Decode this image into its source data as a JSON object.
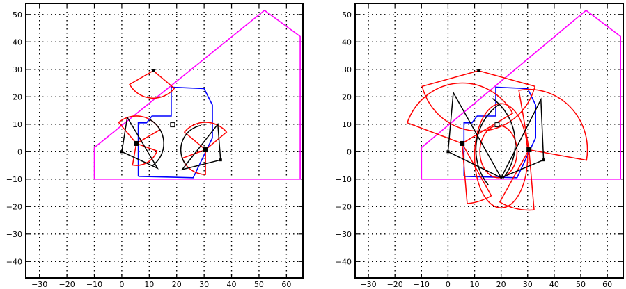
{
  "chart_data": [
    {
      "type": "scatter",
      "title": "",
      "xlabel": "",
      "ylabel": "",
      "xlim": [
        -35,
        66
      ],
      "ylim": [
        -46,
        54
      ],
      "xticks": [
        -30,
        -20,
        -10,
        0,
        10,
        20,
        30,
        40,
        50,
        60
      ],
      "yticks": [
        -40,
        -30,
        -20,
        -10,
        0,
        10,
        20,
        30,
        40,
        50
      ],
      "xtick_labels": [
        "−30",
        "−20",
        "−10",
        "0",
        "10",
        "20",
        "30",
        "40",
        "50",
        "60"
      ],
      "ytick_labels": [
        "−40",
        "−30",
        "−20",
        "−10",
        "0",
        "10",
        "20",
        "30",
        "40",
        "50"
      ],
      "grid": true,
      "colors": {
        "boundary": "#ff00ff",
        "region": "#0000ff",
        "sector": "#ff0000",
        "sensor": "#000000"
      },
      "boundary": [
        [
          -10,
          -10
        ],
        [
          65,
          -10
        ],
        [
          65,
          42
        ],
        [
          52,
          51.5
        ],
        [
          -10,
          1.5
        ],
        [
          -10,
          -10
        ]
      ],
      "region": [
        [
          6,
          -9
        ],
        [
          26,
          -9.5
        ],
        [
          33,
          5
        ],
        [
          33,
          17
        ],
        [
          30,
          23
        ],
        [
          18,
          23.5
        ],
        [
          18,
          13
        ],
        [
          11,
          13
        ],
        [
          9,
          10.5
        ],
        [
          6,
          10.5
        ],
        [
          6,
          -9
        ]
      ],
      "sensors": [
        [
          0,
          0
        ],
        [
          11.5,
          29.5
        ],
        [
          36,
          -3
        ],
        [
          5.3,
          3
        ],
        [
          30.5,
          0.7
        ]
      ],
      "sensor_filled": [
        true,
        true,
        true,
        true,
        true
      ],
      "target": [
        18.5,
        9.8
      ],
      "sector_groups": [
        {
          "sectors": [
            {
              "center": [
                5.3,
                3
              ],
              "radius": 10,
              "start_deg": 30,
              "end_deg": 130
            },
            {
              "center": [
                5.3,
                3
              ],
              "radius": 8,
              "start_deg": -100,
              "end_deg": -20
            },
            {
              "center": [
                11.5,
                29.5
              ],
              "radius": 10,
              "start_deg": 210,
              "end_deg": 320
            },
            {
              "center": [
                30.5,
                0.7
              ],
              "radius": 10,
              "start_deg": 40,
              "end_deg": 140
            },
            {
              "center": [
                30.5,
                0.7
              ],
              "radius": 9,
              "start_deg": 200,
              "end_deg": 270
            }
          ],
          "fans": [
            {
              "vertices": [
                [
                  0,
                  0
                ],
                [
                  2,
                  12.5
                ],
                [
                  13,
                  -6
                ]
              ],
              "center": [
                5.3,
                3
              ],
              "radius": 10,
              "start_deg": -55,
              "end_deg": 60
            },
            {
              "vertices": [
                [
                  36,
                  -3
                ],
                [
                  35,
                  10
                ],
                [
                  22,
                  -6.5
                ]
              ],
              "center": [
                30.5,
                0.7
              ],
              "radius": 9,
              "start_deg": 100,
              "end_deg": 215
            }
          ],
          "ellipses": []
        },
        {
          "sectors": [
            {
              "center": [
                5.3,
                3
              ],
              "radius": 22,
              "start_deg": 30,
              "end_deg": 160
            },
            {
              "center": [
                11.5,
                29.5
              ],
              "radius": 22,
              "start_deg": 195,
              "end_deg": 345
            },
            {
              "center": [
                30.5,
                0.7
              ],
              "radius": 22,
              "start_deg": -10,
              "end_deg": 100
            },
            {
              "center": [
                30.5,
                0.7
              ],
              "radius": 22,
              "start_deg": 240,
              "end_deg": 275
            },
            {
              "center": [
                5.3,
                3
              ],
              "radius": 22,
              "start_deg": -85,
              "end_deg": -60
            }
          ],
          "fans": [
            {
              "vertices": [
                [
                  0,
                  0
                ],
                [
                  2,
                  21.5
                ],
                [
                  20,
                  -9.5
                ]
              ],
              "center": [
                5.3,
                3
              ],
              "radius": 20,
              "start_deg": -40,
              "end_deg": 55
            },
            {
              "vertices": [
                [
                  36,
                  -3
                ],
                [
                  35,
                  19
                ],
                [
                  20,
                  -9.5
                ]
              ],
              "center": [
                30.5,
                0.7
              ],
              "radius": 20,
              "start_deg": 125,
              "end_deg": 220
            }
          ],
          "ellipses": [
            {
              "center": [
                20,
                -1.5
              ],
              "rx": 10,
              "ry": 19
            },
            {
              "center": [
                19,
                0
              ],
              "rx": 7,
              "ry": 9.5
            }
          ]
        }
      ]
    }
  ]
}
